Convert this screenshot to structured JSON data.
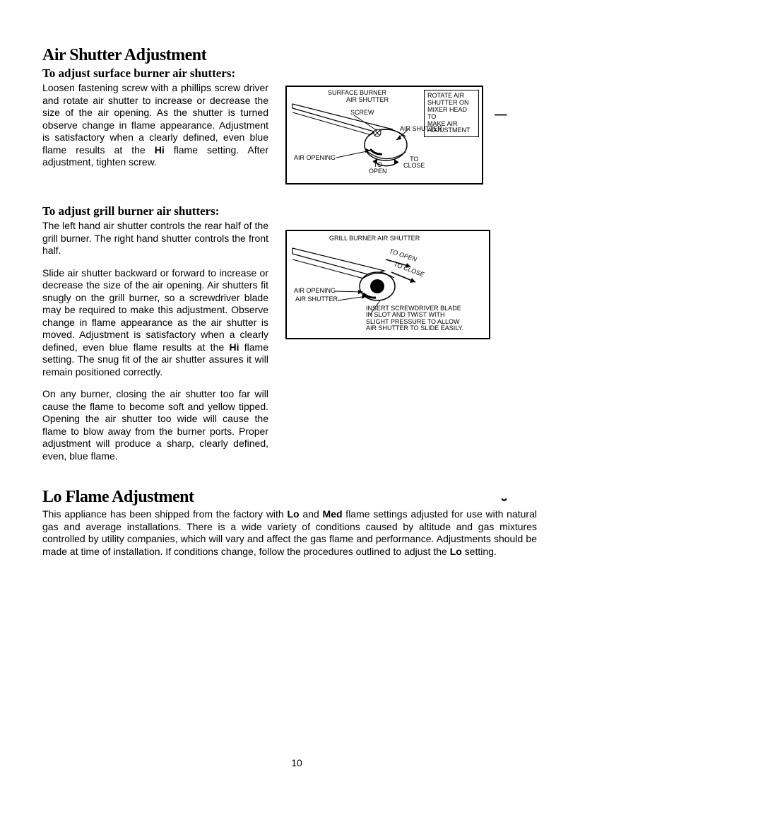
{
  "page": {
    "number": "10"
  },
  "section1": {
    "heading": "Air Shutter Adjustment",
    "sub": "To adjust surface burner air shutters:",
    "body_html": "Loosen fastening screw with a phillips screw driver and rotate air shutter to increase or decrease the size of the air opening. As the shutter is turned observe change in flame appearance. Adjustment is satisfactory when a clearly defined, even blue flame results at the <b>Hi</b> flame setting. After adjustment, tighten screw."
  },
  "diagram1": {
    "labels": {
      "surface_burner": "SURFACE BURNER",
      "air_shutter_top": "AIR SHUTTER",
      "screw": "SCREW",
      "air_shutter_arrow": "AIR SHUTTER",
      "air_opening": "AIR OPENING",
      "to_open": "TO\nOPEN",
      "to_close": "TO\nCLOSE",
      "info_box": "ROTATE AIR\nSHUTTER ON\nMIXER HEAD TO\nMAKE AIR\nADJUSTMENT"
    }
  },
  "section2": {
    "sub": "To adjust grill burner air shutters:",
    "p1": "The left hand air shutter controls the rear half of the grill burner. The right hand shutter controls the front half.",
    "p2_html": "Slide air shutter backward or forward to increase or decrease the size of the air opening. Air shutters fit snugly on the grill burner, so a screwdriver blade may be required to make this adjustment. Observe change in flame appearance as the air shutter is moved. Adjustment is satisfactory when a clearly defined, even blue flame results at the <b>Hi</b> flame setting. The snug fit of the air shutter assures it will remain positioned correctly.",
    "p3": "On any burner, closing the air shutter too far will cause the flame to become soft and yellow tipped. Opening the air shutter too wide will cause the flame to blow away from the burner ports. Proper adjustment will produce a sharp, clearly defined, even, blue flame."
  },
  "diagram2": {
    "labels": {
      "title": "GRILL BURNER AIR SHUTTER",
      "to_open": "TO OPEN",
      "to_close": "TO CLOSE",
      "air_opening": "AIR OPENING",
      "air_shutter": "AIR SHUTTER",
      "note": "INSERT SCREWDRIVER BLADE\nIN SLOT AND TWIST WITH\nSLIGHT PRESSURE TO ALLOW\nAIR SHUTTER TO SLIDE EASILY."
    }
  },
  "section3": {
    "heading": "Lo Flame Adjustment",
    "body_html": "This appliance has been shipped from the factory with <b>Lo</b> and <b>Med</b> flame settings adjusted for use with natural gas and average installations. There is a wide variety of conditions caused by altitude and gas mixtures controlled by utility companies, which will vary and affect the gas flame and performance. Adjustments should be made at time of installation. If conditions change, follow the procedures outlined to adjust the <b>Lo</b> setting."
  },
  "style": {
    "diagram_label_fontsize": 9,
    "body_fontsize": 14
  }
}
